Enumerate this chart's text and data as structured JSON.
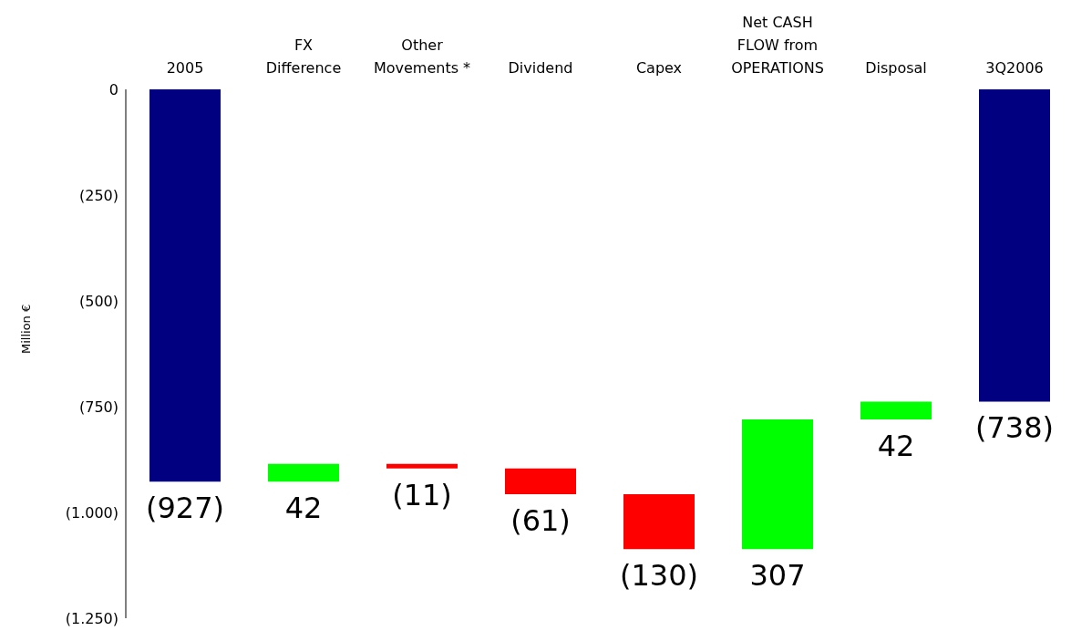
{
  "chart_data": {
    "type": "bar",
    "categories": [
      "2005",
      "FX Difference",
      "Other Movements *",
      "Dividend",
      "Capex",
      "Net CASH FLOW from OPERATIONS",
      "Disposal",
      "3Q2006"
    ],
    "base": [
      0,
      -927,
      -885,
      -896,
      -957,
      -1087,
      -780,
      0
    ],
    "values": [
      -927,
      42,
      -11,
      -61,
      -130,
      307,
      42,
      -738
    ],
    "colors": [
      "#000080",
      "#00ff00",
      "#ff0000",
      "#ff0000",
      "#ff0000",
      "#00ff00",
      "#00ff00",
      "#000080"
    ],
    "value_labels": [
      "(927)",
      "42",
      "(11)",
      "(61)",
      "(130)",
      "307",
      "42",
      "(738)"
    ],
    "ylabel": "Million €",
    "ylim": [
      -1250,
      0
    ],
    "yticks": [
      {
        "value": -1250,
        "label": "(1.250)"
      },
      {
        "value": -1000,
        "label": "(1.000)"
      },
      {
        "value": -750,
        "label": "(750)"
      },
      {
        "value": -500,
        "label": "(500)"
      },
      {
        "value": -250,
        "label": "(250)"
      },
      0
    ]
  }
}
